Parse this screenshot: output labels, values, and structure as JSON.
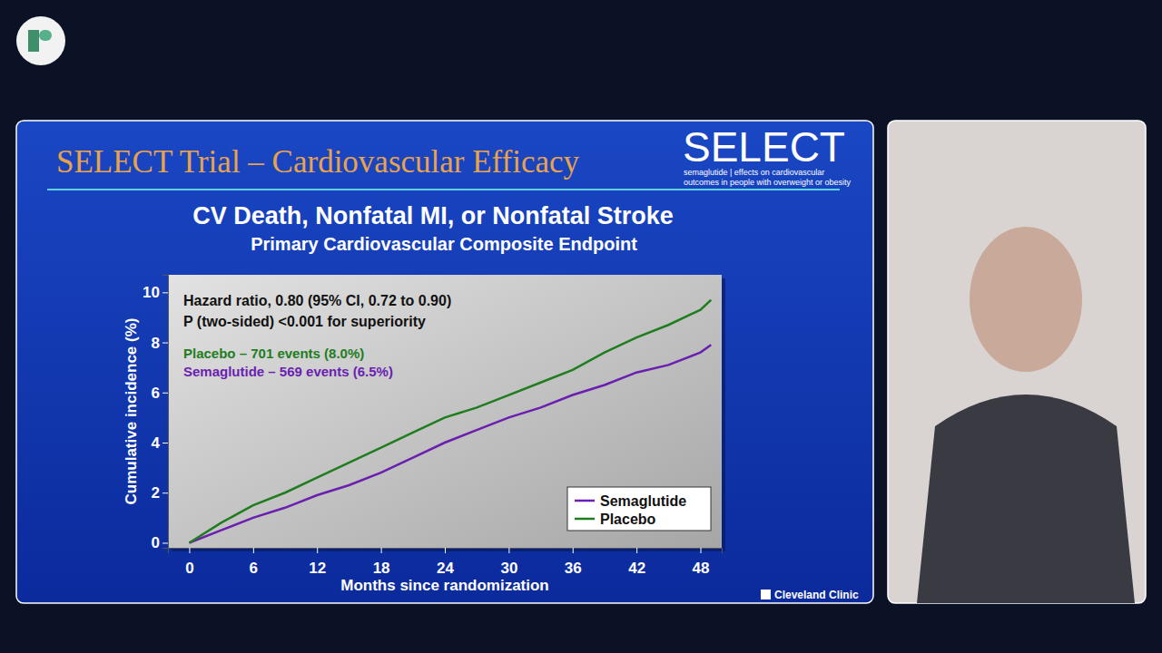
{
  "slide": {
    "title": "SELECT Trial – Cardiovascular Efficacy",
    "logo": "SELECT",
    "logo_caption": [
      "semaglutide | effects on cardiovascular",
      "outcomes in people with overweight or obesity"
    ],
    "footer": "Cleveland Clinic"
  },
  "chart_data": {
    "type": "line",
    "title": "CV Death, Nonfatal MI, or Nonfatal Stroke",
    "subtitle": "Primary Cardiovascular Composite Endpoint",
    "x_label": "Months since randomization",
    "y_label": "Cumulative incidence (%)",
    "annotations": [
      {
        "text": "Hazard ratio, 0.80 (95% CI, 0.72 to 0.90)",
        "color": "#111111"
      },
      {
        "text": "P (two-sided) <0.001 for superiority",
        "color": "#111111"
      },
      {
        "text": "Placebo – 701 events (8.0%)",
        "color": "#1f7d1f"
      },
      {
        "text": "Semaglutide – 569 events (6.5%)",
        "color": "#6a1fb0"
      }
    ],
    "x": [
      0,
      3,
      6,
      9,
      12,
      15,
      18,
      21,
      24,
      27,
      30,
      33,
      36,
      39,
      42,
      45,
      48,
      49
    ],
    "series": [
      {
        "name": "Semaglutide",
        "color": "#6a1fb0",
        "values": [
          0,
          0.5,
          1.0,
          1.4,
          1.9,
          2.3,
          2.8,
          3.4,
          4.0,
          4.5,
          5.0,
          5.4,
          5.9,
          6.3,
          6.8,
          7.1,
          7.6,
          7.9
        ]
      },
      {
        "name": "Placebo",
        "color": "#1f7d1f",
        "values": [
          0,
          0.8,
          1.5,
          2.0,
          2.6,
          3.2,
          3.8,
          4.4,
          5.0,
          5.4,
          5.9,
          6.4,
          6.9,
          7.6,
          8.2,
          8.7,
          9.3,
          9.7
        ]
      }
    ],
    "xlim": [
      -2,
      50
    ],
    "xticks": [
      0,
      6,
      12,
      18,
      24,
      30,
      36,
      42,
      48
    ],
    "ylim": [
      -0.2,
      10.7
    ],
    "yticks": [
      0,
      2,
      4,
      6,
      8,
      10
    ],
    "grid": false,
    "legend": "lower right"
  }
}
